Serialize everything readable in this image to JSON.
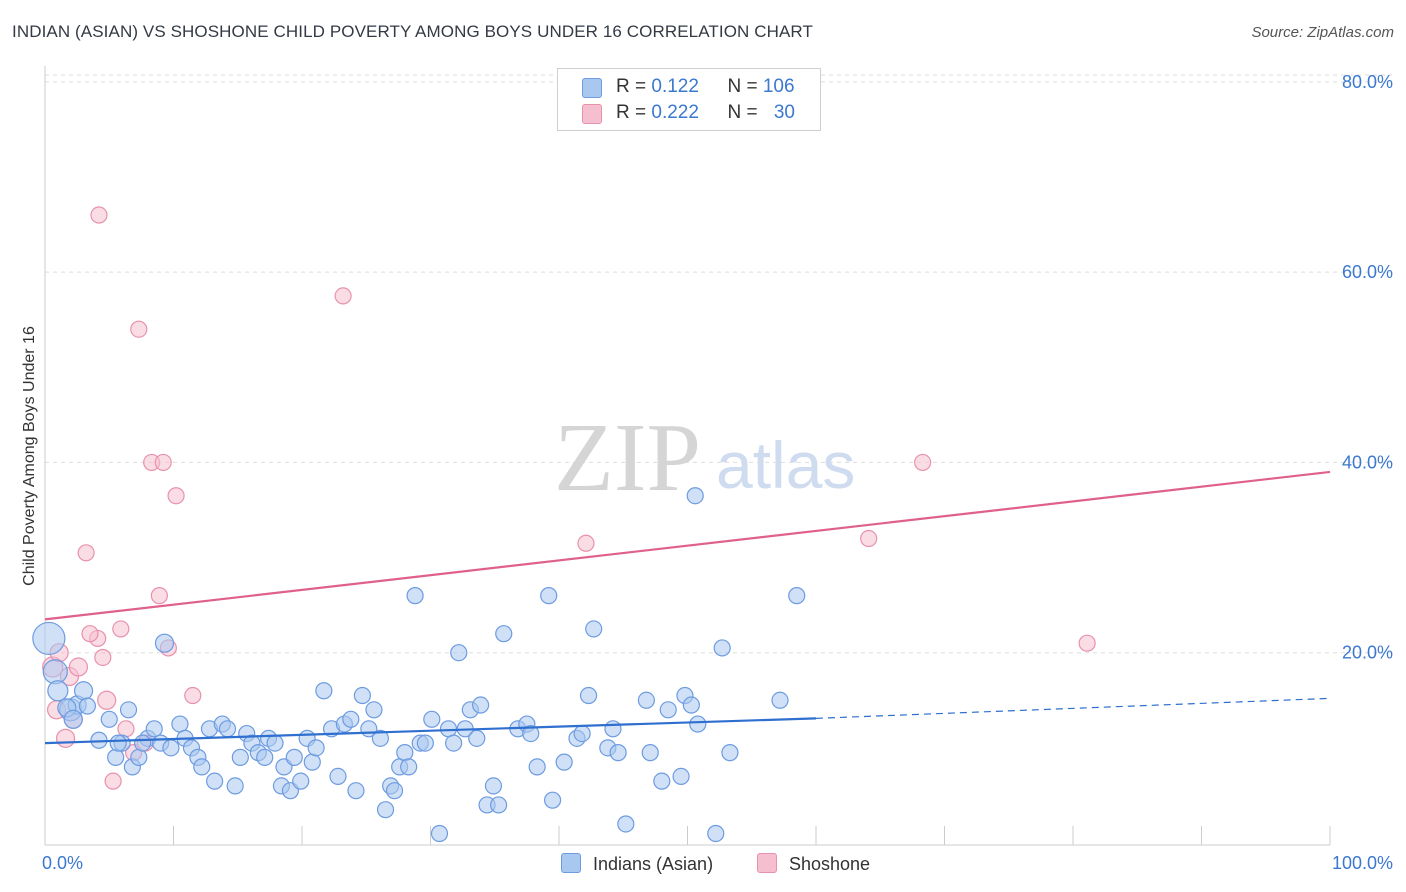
{
  "header": {
    "title": "INDIAN (ASIAN) VS SHOSHONE CHILD POVERTY AMONG BOYS UNDER 16 CORRELATION CHART",
    "source": "Source: ZipAtlas.com"
  },
  "watermark": {
    "part1": "ZIP",
    "part2": "atlas"
  },
  "legend": {
    "rows": [
      {
        "r_label": "R = ",
        "r_value": "0.122",
        "n_label": "N = ",
        "n_value": "106"
      },
      {
        "r_label": "R = ",
        "r_value": "0.222",
        "n_label": "N = ",
        "n_value": "30"
      }
    ]
  },
  "bottom_legend": {
    "series1": "Indians (Asian)",
    "series2": "Shoshone"
  },
  "colors": {
    "blue_fill": "#a9c8f0",
    "blue_stroke": "#6d9be0",
    "blue_line": "#2f6fcf",
    "pink_fill": "#f5bfd0",
    "pink_stroke": "#e891ad",
    "pink_line": "#e0608c",
    "axis_text": "#3b78d0",
    "grid": "#dddddd"
  },
  "chart_data": {
    "type": "scatter",
    "title": "INDIAN (ASIAN) VS SHOSHONE CHILD POVERTY AMONG BOYS UNDER 16 CORRELATION CHART",
    "xlabel": "",
    "ylabel": "Child Poverty Among Boys Under 16",
    "xlim": [
      0,
      100
    ],
    "ylim": [
      0,
      80
    ],
    "x_tick_labels": [
      "0.0%",
      "100.0%"
    ],
    "y_ticks": [
      20,
      40,
      60,
      80
    ],
    "y_tick_labels": [
      "20.0%",
      "40.0%",
      "60.0%",
      "80.0%"
    ],
    "series": [
      {
        "name": "Indians (Asian)",
        "r": 0.122,
        "n": 106,
        "trend": {
          "x0": 0,
          "y0": 10.5,
          "x1": 60,
          "y1": 13.1,
          "dashed_to_x": 100,
          "dashed_to_y": 15.2
        },
        "points": [
          [
            0.3,
            21.5,
            16
          ],
          [
            0.8,
            18.0,
            12
          ],
          [
            1.0,
            16.0,
            10
          ],
          [
            2.0,
            14.0,
            11
          ],
          [
            2.5,
            14.5,
            9
          ],
          [
            1.7,
            14.2,
            9
          ],
          [
            3.0,
            16.0,
            9
          ],
          [
            2.2,
            13.0,
            9
          ],
          [
            3.3,
            14.4,
            8
          ],
          [
            4.2,
            10.8,
            8
          ],
          [
            5.0,
            13.0,
            8
          ],
          [
            5.5,
            9.0,
            8
          ],
          [
            6.0,
            10.5,
            8
          ],
          [
            6.5,
            14.0,
            8
          ],
          [
            5.7,
            10.5,
            8
          ],
          [
            6.8,
            8.0,
            8
          ],
          [
            7.3,
            9.0,
            8
          ],
          [
            8.0,
            11.0,
            8
          ],
          [
            7.6,
            10.5,
            8
          ],
          [
            8.5,
            12.0,
            8
          ],
          [
            9.0,
            10.5,
            8
          ],
          [
            9.3,
            21.0,
            9
          ],
          [
            9.8,
            10.0,
            8
          ],
          [
            10.5,
            12.5,
            8
          ],
          [
            10.9,
            11.0,
            8
          ],
          [
            11.4,
            10.0,
            8
          ],
          [
            11.9,
            9.0,
            8
          ],
          [
            12.2,
            8.0,
            8
          ],
          [
            12.8,
            12.0,
            8
          ],
          [
            13.2,
            6.5,
            8
          ],
          [
            13.8,
            12.5,
            8
          ],
          [
            14.2,
            12.0,
            8
          ],
          [
            14.8,
            6.0,
            8
          ],
          [
            15.2,
            9.0,
            8
          ],
          [
            15.7,
            11.5,
            8
          ],
          [
            16.1,
            10.5,
            8
          ],
          [
            16.6,
            9.5,
            8
          ],
          [
            17.1,
            9.0,
            8
          ],
          [
            17.4,
            11.0,
            8
          ],
          [
            17.9,
            10.5,
            8
          ],
          [
            18.4,
            6.0,
            8
          ],
          [
            18.6,
            8.0,
            8
          ],
          [
            19.1,
            5.5,
            8
          ],
          [
            19.4,
            9.0,
            8
          ],
          [
            19.9,
            6.5,
            8
          ],
          [
            20.4,
            11.0,
            8
          ],
          [
            20.8,
            8.5,
            8
          ],
          [
            21.1,
            10.0,
            8
          ],
          [
            21.7,
            16.0,
            8
          ],
          [
            22.3,
            12.0,
            8
          ],
          [
            22.8,
            7.0,
            8
          ],
          [
            23.3,
            12.5,
            8
          ],
          [
            23.8,
            13.0,
            8
          ],
          [
            24.2,
            5.5,
            8
          ],
          [
            24.7,
            15.5,
            8
          ],
          [
            25.2,
            12.0,
            8
          ],
          [
            25.6,
            14.0,
            8
          ],
          [
            26.1,
            11.0,
            8
          ],
          [
            26.5,
            3.5,
            8
          ],
          [
            26.9,
            6.0,
            8
          ],
          [
            27.2,
            5.5,
            8
          ],
          [
            27.6,
            8.0,
            8
          ],
          [
            28.0,
            9.5,
            8
          ],
          [
            28.3,
            8.0,
            8
          ],
          [
            28.8,
            26.0,
            8
          ],
          [
            29.2,
            10.5,
            8
          ],
          [
            29.6,
            10.5,
            8
          ],
          [
            30.1,
            13.0,
            8
          ],
          [
            30.7,
            1.0,
            8
          ],
          [
            31.4,
            12.0,
            8
          ],
          [
            31.8,
            10.5,
            8
          ],
          [
            32.2,
            20.0,
            8
          ],
          [
            32.7,
            12.0,
            8
          ],
          [
            33.1,
            14.0,
            8
          ],
          [
            33.6,
            11.0,
            8
          ],
          [
            33.9,
            14.5,
            8
          ],
          [
            34.4,
            4.0,
            8
          ],
          [
            34.9,
            6.0,
            8
          ],
          [
            35.3,
            4.0,
            8
          ],
          [
            35.7,
            22.0,
            8
          ],
          [
            36.8,
            12.0,
            8
          ],
          [
            37.5,
            12.5,
            8
          ],
          [
            37.8,
            11.5,
            8
          ],
          [
            38.3,
            8.0,
            8
          ],
          [
            39.2,
            26.0,
            8
          ],
          [
            39.5,
            4.5,
            8
          ],
          [
            40.4,
            8.5,
            8
          ],
          [
            41.4,
            11.0,
            8
          ],
          [
            41.8,
            11.5,
            8
          ],
          [
            42.3,
            15.5,
            8
          ],
          [
            42.7,
            22.5,
            8
          ],
          [
            43.8,
            10.0,
            8
          ],
          [
            44.2,
            12.0,
            8
          ],
          [
            44.6,
            9.5,
            8
          ],
          [
            45.2,
            2.0,
            8
          ],
          [
            46.8,
            15.0,
            8
          ],
          [
            47.1,
            9.5,
            8
          ],
          [
            48.0,
            6.5,
            8
          ],
          [
            48.5,
            14.0,
            8
          ],
          [
            49.5,
            7.0,
            8
          ],
          [
            49.8,
            15.5,
            8
          ],
          [
            50.3,
            14.5,
            8
          ],
          [
            50.8,
            12.5,
            8
          ],
          [
            52.7,
            20.5,
            8
          ],
          [
            53.3,
            9.5,
            8
          ],
          [
            50.6,
            36.5,
            8
          ],
          [
            52.2,
            1.0,
            8
          ],
          [
            57.2,
            15.0,
            8
          ],
          [
            58.5,
            26.0,
            8
          ]
        ]
      },
      {
        "name": "Shoshone",
        "r": 0.222,
        "n": 30,
        "trend": {
          "x0": 0,
          "y0": 23.5,
          "x1": 100,
          "y1": 39.0
        },
        "points": [
          [
            0.6,
            18.5,
            10
          ],
          [
            0.9,
            14.0,
            9
          ],
          [
            1.1,
            20.0,
            9
          ],
          [
            1.6,
            11.0,
            9
          ],
          [
            1.9,
            17.5,
            9
          ],
          [
            2.2,
            13.0,
            9
          ],
          [
            2.6,
            18.5,
            9
          ],
          [
            3.2,
            30.5,
            8
          ],
          [
            4.1,
            21.5,
            8
          ],
          [
            4.2,
            66.0,
            8
          ],
          [
            4.8,
            15.0,
            9
          ],
          [
            5.3,
            6.5,
            8
          ],
          [
            5.9,
            22.5,
            8
          ],
          [
            6.3,
            12.0,
            8
          ],
          [
            6.9,
            9.5,
            8
          ],
          [
            7.3,
            54.0,
            8
          ],
          [
            7.8,
            10.5,
            8
          ],
          [
            8.3,
            40.0,
            8
          ],
          [
            8.9,
            26.0,
            8
          ],
          [
            9.2,
            40.0,
            8
          ],
          [
            9.6,
            20.5,
            8
          ],
          [
            10.2,
            36.5,
            8
          ],
          [
            11.5,
            15.5,
            8
          ],
          [
            23.2,
            57.5,
            8
          ],
          [
            42.1,
            31.5,
            8
          ],
          [
            64.1,
            32.0,
            8
          ],
          [
            68.3,
            40.0,
            8
          ],
          [
            81.1,
            21.0,
            8
          ],
          [
            4.5,
            19.5,
            8
          ],
          [
            3.5,
            22.0,
            8
          ]
        ]
      }
    ]
  }
}
